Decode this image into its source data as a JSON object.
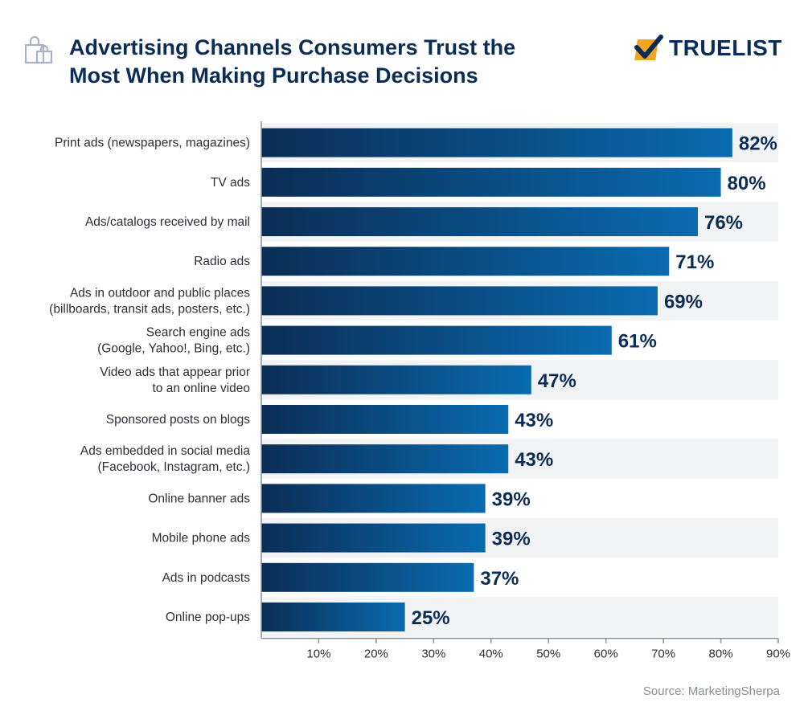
{
  "header": {
    "title_line1": "Advertising Channels Consumers Trust the",
    "title_line2": "Most When Making Purchase Decisions",
    "logo_text": "TRUELIST"
  },
  "source": "Source: MarketingSherpa",
  "colors": {
    "bar_dark": "#0b2d55",
    "bar_light": "#0a6bb0",
    "stripe": "#f2f3f5",
    "text": "#0b2d55",
    "logo_check": "#f2a623"
  },
  "chart_data": {
    "type": "bar",
    "orientation": "horizontal",
    "categories": [
      [
        "Print ads (newspapers, magazines)"
      ],
      [
        "TV ads"
      ],
      [
        "Ads/catalogs received by mail"
      ],
      [
        "Radio ads"
      ],
      [
        "Ads in outdoor and public places",
        "(billboards, transit ads, posters, etc.)"
      ],
      [
        "Search engine ads",
        "(Google, Yahoo!, Bing, etc.)"
      ],
      [
        "Video ads that appear prior",
        "to an online video"
      ],
      [
        "Sponsored posts on blogs"
      ],
      [
        "Ads embedded in social media",
        "(Facebook, Instagram, etc.)"
      ],
      [
        "Online banner ads"
      ],
      [
        "Mobile phone ads"
      ],
      [
        "Ads in podcasts"
      ],
      [
        "Online pop-ups"
      ]
    ],
    "values": [
      82,
      80,
      76,
      71,
      69,
      61,
      47,
      43,
      43,
      39,
      39,
      37,
      25
    ],
    "value_labels": [
      "82%",
      "80%",
      "76%",
      "71%",
      "69%",
      "61%",
      "47%",
      "43%",
      "43%",
      "39%",
      "39%",
      "37%",
      "25%"
    ],
    "xlim": [
      0,
      90
    ],
    "xticks": [
      10,
      20,
      30,
      40,
      50,
      60,
      70,
      80,
      90
    ],
    "xtick_labels": [
      "10%",
      "20%",
      "30%",
      "40%",
      "50%",
      "60%",
      "70%",
      "80%",
      "90%"
    ],
    "grid": false,
    "alternating_row_stripes": true
  }
}
